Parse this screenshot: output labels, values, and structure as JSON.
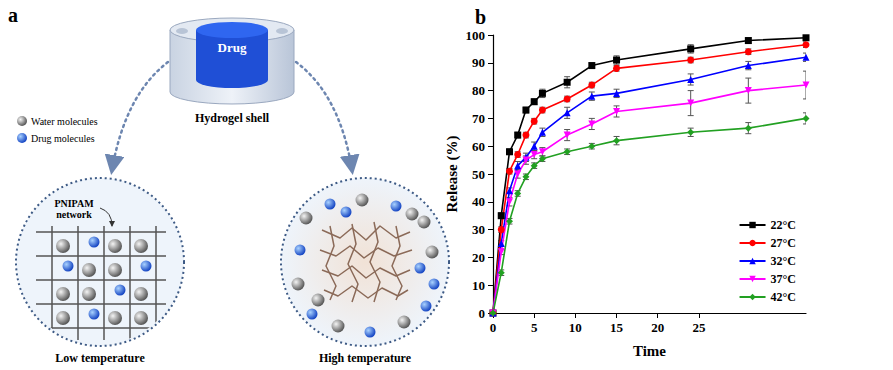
{
  "diagram": {
    "panel_label": "a",
    "reservoir": {
      "core": "Drug",
      "shell": "Hydrogel shell"
    },
    "key": {
      "water": "Water molecules",
      "drug": "Drug molecules"
    },
    "network": "PNIPAM network",
    "states": [
      "Low temperature",
      "High temperature"
    ]
  },
  "chart_data": {
    "type": "line",
    "panel_label": "b",
    "x_label": "Time",
    "y_label": "Release (%)",
    "x": [
      0,
      1,
      2,
      3,
      4,
      5,
      6,
      9,
      12,
      15,
      24,
      31,
      38
    ],
    "xlim": [
      0,
      38
    ],
    "xticks": [
      0,
      5,
      10,
      15,
      20,
      25
    ],
    "ylim": [
      0,
      100
    ],
    "yticks": [
      0,
      10,
      20,
      30,
      40,
      50,
      60,
      70,
      80,
      90,
      100
    ],
    "grid": false,
    "legend": "lower right",
    "series": [
      {
        "name": "22°C",
        "color": "#000000",
        "marker": "square",
        "values": [
          0,
          35,
          58,
          64,
          73,
          76,
          79,
          83,
          89,
          91,
          95,
          98,
          99
        ],
        "errors": [
          0,
          1,
          1,
          1,
          1,
          1,
          1.5,
          2,
          1,
          1.5,
          1.5,
          1,
          1
        ]
      },
      {
        "name": "27°C",
        "color": "#ff0000",
        "marker": "circle",
        "values": [
          0,
          30,
          51,
          57,
          64,
          69,
          73,
          77,
          82,
          88,
          91,
          94,
          96.5
        ],
        "errors": [
          0,
          1,
          1,
          1,
          1,
          1,
          1,
          1,
          1,
          1,
          1,
          1,
          1
        ]
      },
      {
        "name": "32°C",
        "color": "#0000ff",
        "marker": "triangle_up",
        "values": [
          0,
          25,
          44,
          53,
          56,
          60,
          65,
          72,
          78,
          79,
          84,
          89,
          92
        ],
        "errors": [
          0,
          1,
          1,
          1.5,
          1.5,
          1.5,
          1.5,
          2,
          1.5,
          1.5,
          2,
          1.5,
          1.5
        ]
      },
      {
        "name": "37°C",
        "color": "#ff00ff",
        "marker": "triangle_down",
        "values": [
          0,
          22,
          40,
          50,
          55,
          57,
          58,
          64,
          68,
          72.5,
          75.5,
          80,
          82
        ],
        "errors": [
          0,
          1,
          1.5,
          1.5,
          1.5,
          1.5,
          1.5,
          2,
          2,
          2,
          4.5,
          4.5,
          5
        ]
      },
      {
        "name": "42°C",
        "color": "#22a022",
        "marker": "diamond",
        "values": [
          0,
          14.5,
          33,
          43,
          49,
          53,
          55.5,
          58,
          60,
          62,
          65,
          66.5,
          70
        ],
        "errors": [
          0,
          1,
          1,
          1,
          1,
          1,
          1,
          1,
          1,
          1.5,
          1.5,
          2,
          2
        ]
      }
    ]
  }
}
